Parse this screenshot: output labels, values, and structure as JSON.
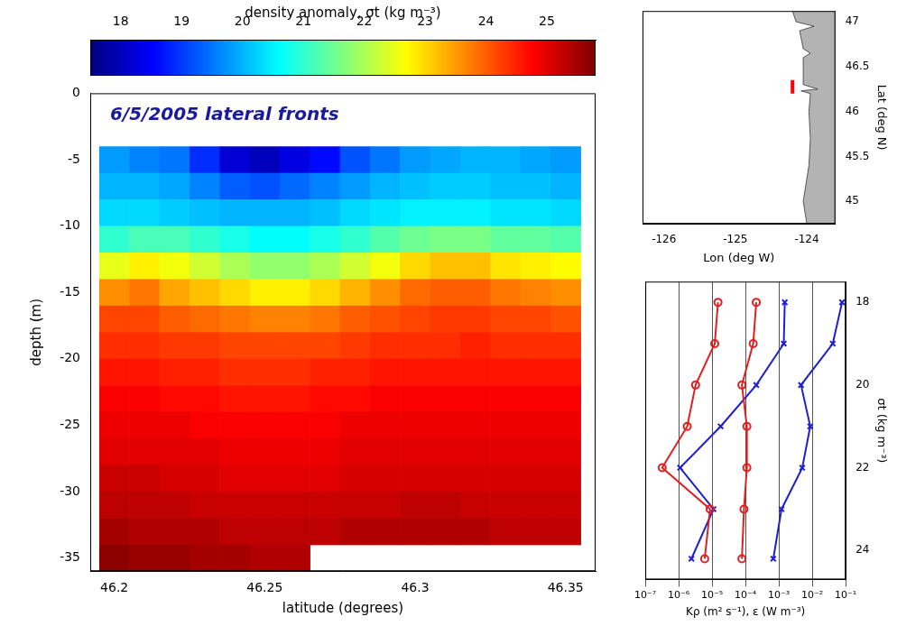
{
  "chart_data": [
    {
      "type": "heatmap",
      "x_label": "latitude (degrees)",
      "y_label": "depth (m)",
      "annotations": [
        {
          "text": "6/5/2005 lateral fronts"
        }
      ],
      "xlim": [
        46.192,
        46.36
      ],
      "ylim": [
        -36,
        0
      ],
      "xticks": [
        46.2,
        46.25,
        46.3,
        46.35
      ],
      "yticks": [
        -35,
        -30,
        -25,
        -20,
        -15,
        -10,
        -5,
        0
      ],
      "grid": false,
      "x": [
        46.2,
        46.21,
        46.22,
        46.23,
        46.24,
        46.25,
        46.26,
        46.27,
        46.28,
        46.29,
        46.3,
        46.31,
        46.32,
        46.33,
        46.34,
        46.35
      ],
      "y": [
        -5,
        -7,
        -9,
        -11,
        -13,
        -15,
        -17,
        -19,
        -21,
        -23,
        -25,
        -27,
        -29,
        -31,
        -33,
        -35
      ],
      "cells": [
        [
          19.8,
          19.6,
          19.5,
          18.9,
          18.2,
          18.0,
          18.3,
          18.6,
          19.2,
          19.5,
          19.8,
          19.9,
          20.0,
          20.0,
          19.9,
          19.8
        ],
        [
          20.0,
          20.0,
          19.9,
          19.6,
          19.3,
          19.2,
          19.4,
          19.6,
          19.8,
          20.0,
          20.1,
          20.2,
          20.2,
          20.1,
          20.1,
          20.0
        ],
        [
          20.3,
          20.3,
          20.2,
          20.1,
          20.0,
          20.0,
          20.0,
          20.1,
          20.3,
          20.4,
          20.5,
          20.5,
          20.5,
          20.4,
          20.4,
          20.3
        ],
        [
          21.0,
          21.2,
          21.2,
          21.0,
          20.8,
          20.6,
          20.6,
          20.8,
          21.0,
          21.3,
          21.5,
          21.6,
          21.6,
          21.4,
          21.4,
          21.3
        ],
        [
          22.5,
          22.8,
          22.6,
          22.3,
          22.0,
          21.8,
          21.8,
          22.0,
          22.3,
          22.6,
          23.0,
          23.2,
          23.2,
          22.9,
          22.8,
          22.7
        ],
        [
          23.6,
          23.8,
          23.4,
          23.2,
          23.0,
          22.8,
          22.8,
          23.0,
          23.3,
          23.6,
          23.9,
          24.0,
          24.0,
          23.8,
          23.7,
          23.6
        ],
        [
          24.2,
          24.2,
          24.0,
          23.9,
          23.8,
          23.7,
          23.7,
          23.8,
          24.0,
          24.1,
          24.2,
          24.3,
          24.3,
          24.2,
          24.2,
          24.1
        ],
        [
          24.4,
          24.4,
          24.3,
          24.3,
          24.2,
          24.2,
          24.2,
          24.2,
          24.3,
          24.4,
          24.4,
          24.4,
          24.5,
          24.4,
          24.4,
          24.4
        ],
        [
          24.6,
          24.6,
          24.5,
          24.5,
          24.4,
          24.4,
          24.4,
          24.5,
          24.5,
          24.6,
          24.6,
          24.6,
          24.6,
          24.6,
          24.6,
          24.6
        ],
        [
          24.8,
          24.8,
          24.7,
          24.7,
          24.6,
          24.6,
          24.6,
          24.7,
          24.7,
          24.8,
          24.8,
          24.8,
          24.8,
          24.8,
          24.8,
          24.8
        ],
        [
          24.9,
          24.9,
          24.9,
          24.8,
          24.8,
          24.8,
          24.8,
          24.8,
          24.9,
          24.9,
          24.9,
          24.9,
          24.9,
          24.9,
          24.9,
          24.9
        ],
        [
          25.0,
          25.0,
          25.0,
          25.0,
          24.9,
          24.9,
          24.9,
          24.9,
          25.0,
          25.0,
          25.0,
          25.0,
          25.0,
          25.0,
          25.0,
          25.0
        ],
        [
          25.2,
          25.2,
          25.1,
          25.1,
          25.0,
          25.0,
          25.0,
          25.0,
          25.1,
          25.1,
          25.1,
          25.1,
          25.1,
          25.1,
          25.1,
          25.1
        ],
        [
          25.3,
          25.3,
          25.3,
          25.2,
          25.2,
          25.2,
          25.2,
          25.2,
          25.2,
          25.2,
          25.3,
          25.3,
          25.2,
          25.2,
          25.2,
          25.2
        ],
        [
          25.5,
          25.4,
          25.4,
          25.4,
          25.3,
          25.3,
          25.3,
          25.3,
          25.4,
          25.4,
          25.4,
          25.4,
          25.4,
          25.3,
          25.3,
          25.3
        ],
        [
          25.7,
          25.6,
          25.6,
          25.5,
          25.5,
          25.4,
          25.4,
          null,
          null,
          null,
          null,
          null,
          null,
          null,
          null,
          null
        ]
      ],
      "colorbar": {
        "title": "density anomaly, σt (kg m⁻³)",
        "range": [
          17.5,
          25.8
        ],
        "ticks": [
          18,
          19,
          20,
          21,
          22,
          23,
          24,
          25
        ]
      }
    },
    {
      "type": "map",
      "x_label": "Lon (deg W)",
      "y_label": "Lat (deg N)",
      "xlim": [
        -126.3,
        -123.6
      ],
      "ylim": [
        44.75,
        47.12
      ],
      "xticks": [
        -126,
        -125,
        -124
      ],
      "yticks": [
        45,
        45.5,
        46,
        46.5,
        47
      ],
      "grid": false,
      "series": [
        {
          "type": "area",
          "color": "#b3b3b3",
          "x": [
            -124.0,
            -124.05,
            -123.97,
            -123.95,
            -123.97,
            -123.95,
            -124.08,
            -123.85,
            -124.05,
            -124.05,
            -123.95,
            -124.05,
            -124.1,
            -123.9,
            -124.15,
            -124.2
          ],
          "y": [
            44.75,
            45.0,
            45.4,
            45.7,
            46.0,
            46.2,
            46.23,
            46.25,
            46.3,
            46.6,
            46.65,
            46.7,
            46.9,
            46.95,
            47.0,
            47.12
          ]
        },
        {
          "type": "line",
          "color": "#ff0000",
          "x": [
            -124.2,
            -124.2
          ],
          "y": [
            46.2,
            46.35
          ]
        }
      ]
    },
    {
      "type": "line",
      "log": "x",
      "x_label": "Kρ (m² s⁻¹), ε (W m⁻³)",
      "y_label": "σt (kg m⁻³)",
      "xlim": [
        1e-07,
        0.1
      ],
      "ylim": [
        24.7,
        17.5
      ],
      "xticks": [
        {
          "value": 1e-07,
          "label": "10⁻⁷"
        },
        {
          "value": 1e-06,
          "label": "10⁻⁶"
        },
        {
          "value": 1e-05,
          "label": "10⁻⁵"
        },
        {
          "value": 0.0001,
          "label": "10⁻⁴"
        },
        {
          "value": 0.001,
          "label": "10⁻³"
        },
        {
          "value": 0.01,
          "label": "10⁻²"
        },
        {
          "value": 0.1,
          "label": "10⁻¹"
        }
      ],
      "yticks": [
        18,
        20,
        22,
        24
      ],
      "grid": true,
      "series": [
        {
          "color": "#e02020",
          "marker": "circle",
          "x": [
            1.5e-05,
            1.2e-05,
            3.2e-06,
            1.8e-06,
            3.2e-07,
            8.7e-06,
            6e-06
          ],
          "y": [
            18,
            19,
            20,
            21,
            22,
            23,
            24.2
          ]
        },
        {
          "color": "#e02020",
          "marker": "circle",
          "x": [
            0.00021,
            0.00017,
            7.8e-05,
            0.00011,
            0.00011,
            9e-05,
            7.8e-05
          ],
          "y": [
            18,
            19,
            20,
            21,
            22,
            23,
            24.2
          ]
        },
        {
          "color": "#1f1fd0",
          "marker": "x",
          "x": [
            0.0015,
            0.0014,
            0.00021,
            1.8e-05,
            1.1e-06,
            1.1e-05,
            2.4e-06
          ],
          "y": [
            18,
            19,
            20,
            21,
            22,
            23,
            24.2
          ]
        },
        {
          "color": "#1f1fd0",
          "marker": "x",
          "x": [
            0.078,
            0.041,
            0.0046,
            0.0087,
            0.005,
            0.0012,
            0.00068
          ],
          "y": [
            18,
            19,
            20,
            21,
            22,
            23,
            24.2
          ]
        }
      ]
    }
  ]
}
